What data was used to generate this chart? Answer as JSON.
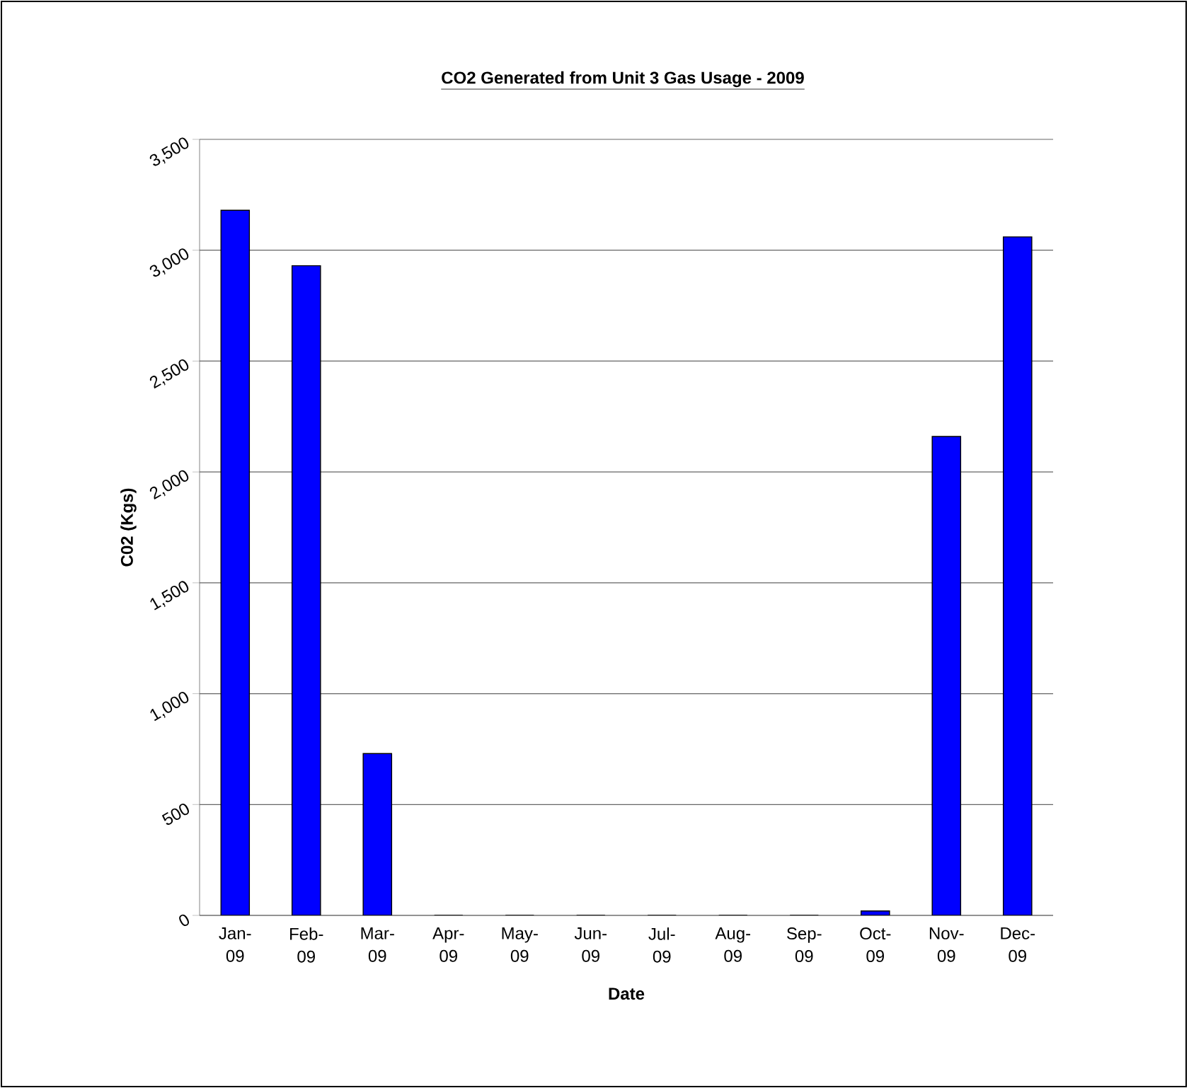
{
  "chart_data": {
    "type": "bar",
    "title": "CO2 Generated from Unit 3 Gas Usage - 2009",
    "xlabel": "Date",
    "ylabel": "C02 (Kgs)",
    "categories": [
      "Jan-09",
      "Feb-09",
      "Mar-09",
      "Apr-09",
      "May-09",
      "Jun-09",
      "Jul-09",
      "Aug-09",
      "Sep-09",
      "Oct-09",
      "Nov-09",
      "Dec-09"
    ],
    "values": [
      3180,
      2930,
      730,
      0,
      0,
      0,
      0,
      0,
      0,
      20,
      2160,
      3060
    ],
    "color": "#0000ff",
    "ylim": [
      0,
      3500
    ],
    "yticks": [
      0,
      {
        "value": 500,
        "label": "500"
      },
      {
        "value": 1000,
        "label": "1,000"
      },
      {
        "value": 1500,
        "label": "1,500"
      },
      {
        "value": 2000,
        "label": "2,000"
      },
      {
        "value": 2500,
        "label": "2,500"
      },
      {
        "value": 3000,
        "label": "3,000"
      },
      {
        "value": 3500,
        "label": "3,500"
      }
    ],
    "grid": "y"
  }
}
